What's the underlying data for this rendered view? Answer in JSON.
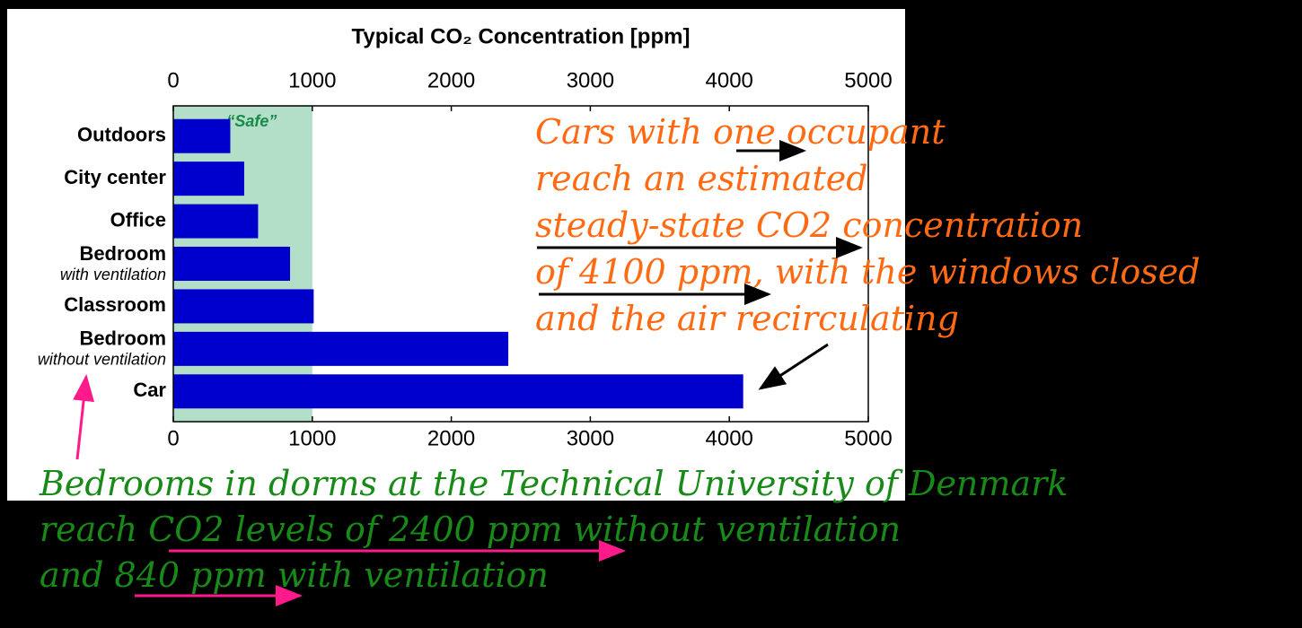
{
  "chart_data": {
    "type": "barh",
    "title": "Typical CO₂ Concentration [ppm]",
    "categories": [
      "Outdoors",
      "City center",
      "Office",
      "Bedroom",
      "Classroom",
      "Bedroom",
      "Car"
    ],
    "category_sublabels": [
      null,
      null,
      null,
      "with ventilation",
      null,
      "without ventilation",
      null
    ],
    "values": [
      410,
      510,
      610,
      840,
      1010,
      2410,
      4100
    ],
    "color": "#0000cc",
    "xlim": [
      0,
      5000
    ],
    "xticks": [
      0,
      1000,
      2000,
      3000,
      4000,
      5000
    ],
    "safe_band": {
      "label": "“Safe”",
      "range": [
        0,
        1000
      ],
      "color": "#b3dfc8"
    },
    "annotations": {
      "car_note": [
        "Cars with one occupant",
        "reach an estimated",
        "steady-state CO2 concentration",
        "of 4100 ppm, with the windows closed",
        "and the air recirculating"
      ],
      "bedroom_note": [
        "Bedrooms in dorms at the Technical University of Denmark",
        "reach CO2 levels of 2400 ppm without ventilation",
        "and 840 ppm with ventilation"
      ]
    }
  }
}
